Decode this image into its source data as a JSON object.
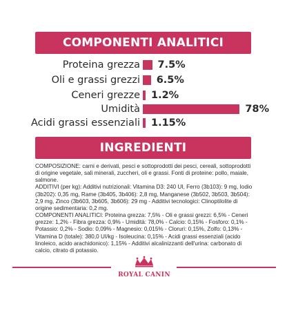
{
  "components_title": "COMPONENTI ANALITICI",
  "ingredients_title": "INGREDIENTI",
  "accent_color": "#c8345e",
  "analytics": [
    {
      "label": "Proteina grezza",
      "value": "7.5%",
      "percent": 7.5
    },
    {
      "label": "Oli e grassi grezzi",
      "value": "6.5%",
      "percent": 6.5
    },
    {
      "label": "Ceneri grezze",
      "value": "1.2%",
      "percent": 1.2
    },
    {
      "label": "Umidità",
      "value": "78%",
      "percent": 78
    },
    {
      "label": "Acidi grassi essenziali",
      "value": "1.15%",
      "percent": 1.15
    }
  ],
  "ingredients_paragraphs": [
    "COMPOSIZIONE: carni e derivati, pesci e sottoprodotti dei pesci, cereali, sottoprodotti di origine vegetale, sali minerali, zuccheri, oli e grassi. Fonti di proteine: pollo, maiale, salmone.",
    "ADDITIVI (per kg): Additivi nutrizionali: Vitamina D3: 240 UI, Ferro (3b103): 9 mg, Iodio (3b202): 0,35 mg, Rame (3b405, 3b406): 2,8 mg, Manganese (3b502, 3b503, 3b504): 2,9 mg, Zinco (3b603, 3b605, 3b606): 29 mg - Additivi tecnologici: Clinoptilolite di origine sedimentaria: 0,2 mg.",
    "COMPONENTI ANALITICI: Proteina grezza: 7,5% - Oli e grassi grezzi: 6,5% - Ceneri grezze: 1,2% - Fibra grezza: 0,9% - Umidità: 78,0% - Calcio: 0,15% - Fosforo: 0,1% - Potassio: 0,2% - Sodio: 0,09% - Magnesio: 0,015% - Cloruri: 0,15%, Zolfo: 0,13% - Vitamina D (totale): 380,0 UI/kg - Isoleucina: 0,15% - Acidi grassi essenziali (acido linoleico, acido arachidonico): 1,15% - Additivi alcalinizzanti dell'urina: carbonato di calcio, citrato di potassio."
  ],
  "logo": {
    "name": "royal-canin-logo"
  }
}
